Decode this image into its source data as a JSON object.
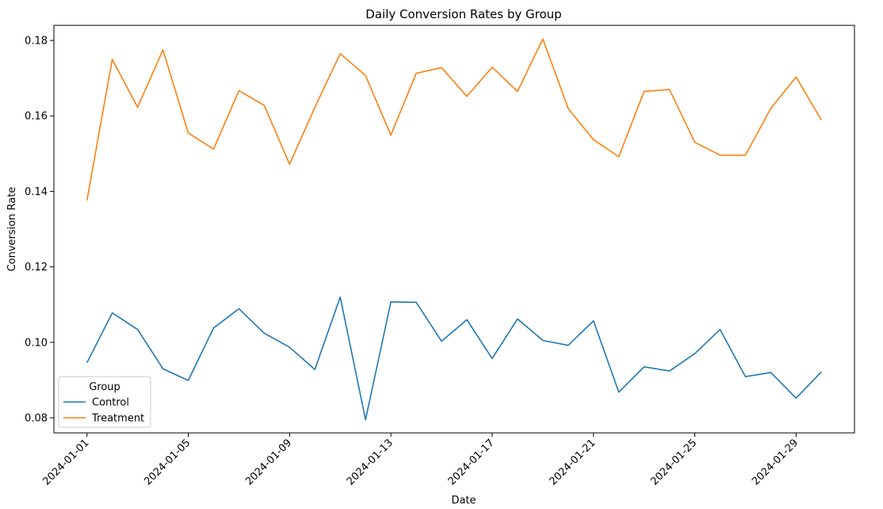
{
  "chart_data": {
    "type": "line",
    "title": "Daily Conversion Rates by Group",
    "xlabel": "Date",
    "ylabel": "Conversion Rate",
    "x": [
      "2024-01-01",
      "2024-01-02",
      "2024-01-03",
      "2024-01-04",
      "2024-01-05",
      "2024-01-06",
      "2024-01-07",
      "2024-01-08",
      "2024-01-09",
      "2024-01-10",
      "2024-01-11",
      "2024-01-12",
      "2024-01-13",
      "2024-01-14",
      "2024-01-15",
      "2024-01-16",
      "2024-01-17",
      "2024-01-18",
      "2024-01-19",
      "2024-01-20",
      "2024-01-21",
      "2024-01-22",
      "2024-01-23",
      "2024-01-24",
      "2024-01-25",
      "2024-01-26",
      "2024-01-27",
      "2024-01-28",
      "2024-01-29",
      "2024-01-30"
    ],
    "xlim": [
      "2024-01-01",
      "2024-01-30"
    ],
    "xticks": [
      "2024-01-01",
      "2024-01-05",
      "2024-01-09",
      "2024-01-13",
      "2024-01-17",
      "2024-01-21",
      "2024-01-25",
      "2024-01-29"
    ],
    "ylim": [
      0.076,
      0.184
    ],
    "yticks": [
      0.08,
      0.1,
      0.12,
      0.14,
      0.16,
      0.18
    ],
    "grid": false,
    "legend": {
      "title": "Group",
      "placement": "lower-left"
    },
    "series": [
      {
        "name": "Control",
        "color": "#1f77b4",
        "values": [
          0.0946,
          0.1078,
          0.1034,
          0.093,
          0.0899,
          0.1038,
          0.1089,
          0.1024,
          0.0987,
          0.0928,
          0.112,
          0.0795,
          0.1107,
          0.1106,
          0.1003,
          0.106,
          0.0957,
          0.1062,
          0.1005,
          0.0992,
          0.1057,
          0.0868,
          0.0935,
          0.0924,
          0.097,
          0.1034,
          0.0909,
          0.092,
          0.0852,
          0.0922
        ]
      },
      {
        "name": "Treatment",
        "color": "#ff7f0e",
        "values": [
          0.1376,
          0.175,
          0.1623,
          0.1775,
          0.1555,
          0.1512,
          0.1667,
          0.1628,
          0.1472,
          0.1623,
          0.1765,
          0.1707,
          0.1549,
          0.1713,
          0.1728,
          0.1652,
          0.1729,
          0.1665,
          0.1804,
          0.162,
          0.1537,
          0.1492,
          0.1665,
          0.167,
          0.153,
          0.1496,
          0.1496,
          0.162,
          0.1703,
          0.1589
        ]
      }
    ]
  }
}
